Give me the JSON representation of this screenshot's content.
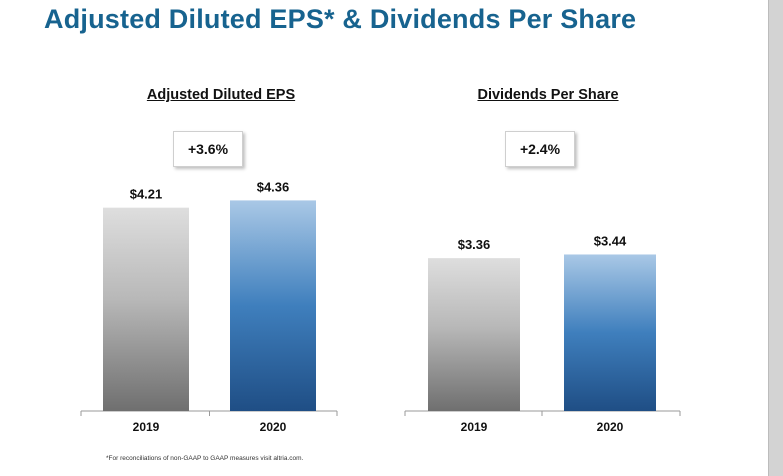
{
  "slide_title": "Adjusted Diluted EPS* & Dividends Per Share",
  "footnote": "*For reconciliations of non-GAAP to GAAP measures visit altria.com.",
  "colors": {
    "title": "#17638f",
    "gray_top": "#dedede",
    "gray_mid": "#b8b8b8",
    "gray_bottom": "#6f6f6f",
    "blue_top": "#a9c8e6",
    "blue_mid": "#3f7fbd",
    "blue_bottom": "#1f4e85"
  },
  "chart_data": [
    {
      "type": "bar",
      "title": "Adjusted Diluted EPS",
      "change_label": "+3.6%",
      "categories": [
        "2019",
        "2020"
      ],
      "values": [
        4.21,
        4.36
      ],
      "value_labels": [
        "$4.21",
        "$4.36"
      ],
      "ylim": [
        0,
        5.0
      ],
      "xlabel": "",
      "ylabel": ""
    },
    {
      "type": "bar",
      "title": "Dividends Per Share",
      "change_label": "+2.4%",
      "categories": [
        "2019",
        "2020"
      ],
      "values": [
        3.36,
        3.44
      ],
      "value_labels": [
        "$3.36",
        "$3.44"
      ],
      "ylim": [
        0,
        4.0
      ],
      "xlabel": "",
      "ylabel": ""
    }
  ]
}
